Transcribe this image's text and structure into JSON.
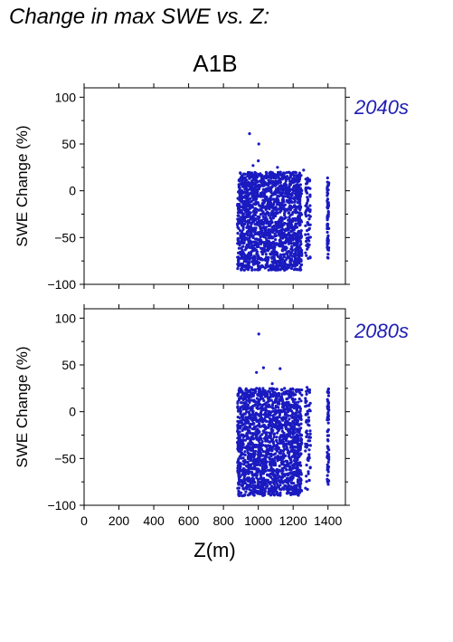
{
  "figure": {
    "title": "Change in max SWE vs. Z:",
    "scenario": "A1B",
    "xlabel": "Z(m)"
  },
  "colors": {
    "points": "#1a1ac0",
    "annotation": "#1e1eb4",
    "axis": "#000000"
  },
  "chart_data": [
    {
      "type": "scatter",
      "period_label": "2040s",
      "ylabel": "SWE Change (%)",
      "xlim": [
        0,
        1500
      ],
      "ylim": [
        -100,
        110
      ],
      "xticks": [
        0,
        200,
        400,
        600,
        800,
        1000,
        1200,
        1400
      ],
      "yticks": [
        -100,
        -50,
        0,
        50,
        100
      ],
      "grid": false,
      "main_cloud": {
        "x_range": [
          880,
          1250
        ],
        "y_range": [
          -85,
          20
        ]
      },
      "sparse_columns": [
        {
          "x_range": [
            1270,
            1300
          ],
          "y_range": [
            -75,
            15
          ]
        },
        {
          "x_range": [
            1395,
            1405
          ],
          "y_range": [
            -72,
            14
          ]
        }
      ],
      "outliers": [
        {
          "x": 950,
          "y": 61
        },
        {
          "x": 1003,
          "y": 50
        },
        {
          "x": 970,
          "y": 27
        },
        {
          "x": 1000,
          "y": 32
        },
        {
          "x": 1110,
          "y": 25
        },
        {
          "x": 1260,
          "y": 22
        }
      ]
    },
    {
      "type": "scatter",
      "period_label": "2080s",
      "ylabel": "SWE Change (%)",
      "xlim": [
        0,
        1500
      ],
      "ylim": [
        -100,
        110
      ],
      "xticks": [
        0,
        200,
        400,
        600,
        800,
        1000,
        1200,
        1400
      ],
      "yticks": [
        -100,
        -50,
        0,
        50,
        100
      ],
      "grid": false,
      "main_cloud": {
        "x_range": [
          880,
          1250
        ],
        "y_range": [
          -90,
          25
        ]
      },
      "sparse_columns": [
        {
          "x_range": [
            1270,
            1300
          ],
          "y_range": [
            -85,
            25
          ]
        },
        {
          "x_range": [
            1395,
            1405
          ],
          "y_range": [
            -80,
            25
          ]
        }
      ],
      "outliers": [
        {
          "x": 1003,
          "y": 83
        },
        {
          "x": 1030,
          "y": 47
        },
        {
          "x": 990,
          "y": 42
        },
        {
          "x": 1125,
          "y": 46
        },
        {
          "x": 1080,
          "y": 30
        },
        {
          "x": 1280,
          "y": 26
        }
      ]
    }
  ]
}
